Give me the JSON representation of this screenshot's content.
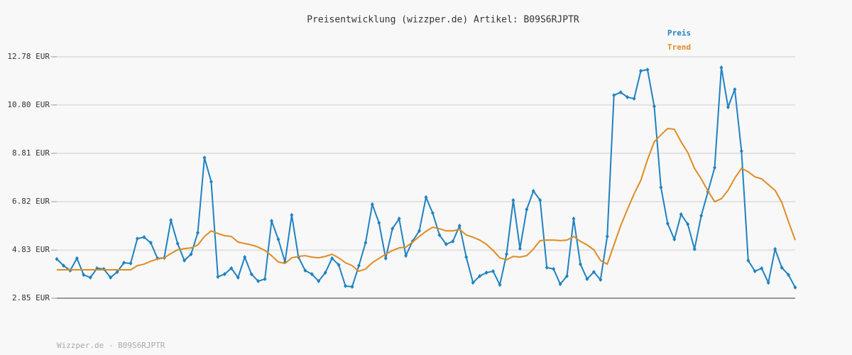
{
  "chart_data": {
    "type": "line",
    "title": "Preisentwicklung (wizzper.de) Artikel: B09S6RJPTR",
    "footer": "Wizzper.de - B09S6RJPTR",
    "legend": "top-right",
    "grid": true,
    "categories": [
      null,
      null,
      null,
      null,
      null,
      null,
      null,
      null,
      null,
      null,
      null,
      null,
      null,
      null,
      null,
      null,
      null,
      null,
      null,
      null,
      null,
      null,
      null,
      null,
      null,
      null,
      null,
      null,
      null,
      null,
      null,
      null,
      null,
      null,
      null,
      null,
      null,
      null,
      null,
      null,
      null,
      null,
      null,
      null,
      null,
      null,
      null,
      null,
      null,
      null,
      null,
      null,
      null,
      null,
      null,
      null,
      null,
      null,
      null,
      null,
      null,
      null,
      null,
      null,
      null,
      null,
      null,
      null,
      null,
      null,
      null,
      null,
      null,
      null,
      null,
      null,
      null,
      null,
      null,
      null,
      null,
      null,
      null,
      null,
      null,
      null,
      null,
      null,
      null,
      null,
      null,
      null,
      null,
      null,
      null,
      null,
      null,
      null,
      null,
      null,
      null,
      null,
      null,
      null,
      null,
      null,
      null,
      null,
      null,
      null,
      null
    ],
    "ylim": [
      2.85,
      12.78
    ],
    "yticks": [
      {
        "value": 2.85,
        "label": "2.85 EUR"
      },
      {
        "value": 4.83,
        "label": "4.83 EUR"
      },
      {
        "value": 6.82,
        "label": "6.82 EUR"
      },
      {
        "value": 8.81,
        "label": "8.81 EUR"
      },
      {
        "value": 10.8,
        "label": "10.80 EUR"
      },
      {
        "value": 12.78,
        "label": "12.78 EUR"
      }
    ],
    "series": [
      {
        "name": "Preis",
        "color": "#1f82c0",
        "markers": true,
        "values": [
          4.46,
          4.19,
          3.99,
          4.49,
          3.81,
          3.7,
          4.08,
          4.05,
          3.7,
          3.93,
          4.31,
          4.28,
          5.3,
          5.36,
          5.13,
          4.49,
          4.51,
          6.06,
          5.1,
          4.4,
          4.66,
          5.54,
          8.63,
          7.64,
          3.73,
          3.84,
          4.08,
          3.7,
          4.54,
          3.84,
          3.55,
          3.64,
          6.03,
          5.27,
          4.34,
          6.27,
          4.54,
          3.99,
          3.84,
          3.55,
          3.9,
          4.49,
          4.22,
          3.35,
          3.32,
          4.19,
          5.13,
          6.71,
          5.95,
          4.49,
          5.71,
          6.12,
          4.6,
          5.19,
          5.62,
          7.0,
          6.35,
          5.45,
          5.07,
          5.19,
          5.83,
          4.54,
          3.49,
          3.76,
          3.9,
          3.96,
          3.4,
          4.66,
          6.88,
          4.89,
          6.5,
          7.26,
          6.88,
          4.11,
          4.05,
          3.43,
          3.76,
          6.12,
          4.25,
          3.64,
          3.93,
          3.61,
          5.39,
          11.2,
          11.32,
          11.12,
          11.06,
          12.2,
          12.25,
          10.74,
          7.41,
          5.92,
          5.27,
          6.3,
          5.89,
          4.87,
          6.24,
          7.23,
          8.22,
          12.34,
          10.71,
          11.44,
          8.9,
          4.4,
          3.96,
          4.08,
          3.49,
          4.87,
          4.11,
          3.81,
          3.29
        ]
      },
      {
        "name": "Trend",
        "color": "#e08b24",
        "markers": false,
        "values": [
          4.02,
          4.02,
          4.02,
          4.02,
          4.02,
          4.02,
          4.02,
          4.02,
          4.02,
          4.02,
          4.02,
          4.02,
          4.19,
          4.25,
          4.37,
          4.46,
          4.51,
          4.69,
          4.84,
          4.89,
          4.92,
          5.04,
          5.39,
          5.62,
          5.51,
          5.42,
          5.39,
          5.16,
          5.1,
          5.04,
          4.95,
          4.81,
          4.6,
          4.34,
          4.28,
          4.51,
          4.57,
          4.6,
          4.54,
          4.51,
          4.57,
          4.66,
          4.51,
          4.31,
          4.19,
          3.96,
          4.05,
          4.31,
          4.49,
          4.66,
          4.81,
          4.92,
          4.95,
          5.16,
          5.39,
          5.6,
          5.77,
          5.71,
          5.62,
          5.62,
          5.68,
          5.45,
          5.36,
          5.24,
          5.07,
          4.81,
          4.51,
          4.43,
          4.57,
          4.54,
          4.6,
          4.87,
          5.22,
          5.24,
          5.24,
          5.22,
          5.24,
          5.39,
          5.19,
          5.04,
          4.84,
          4.4,
          4.25,
          5.04,
          5.83,
          6.5,
          7.14,
          7.7,
          8.55,
          9.28,
          9.57,
          9.83,
          9.8,
          9.28,
          8.84,
          8.19,
          7.76,
          7.26,
          6.82,
          6.94,
          7.29,
          7.79,
          8.19,
          8.05,
          7.84,
          7.76,
          7.52,
          7.29,
          6.79,
          6.0,
          5.24
        ]
      }
    ]
  }
}
